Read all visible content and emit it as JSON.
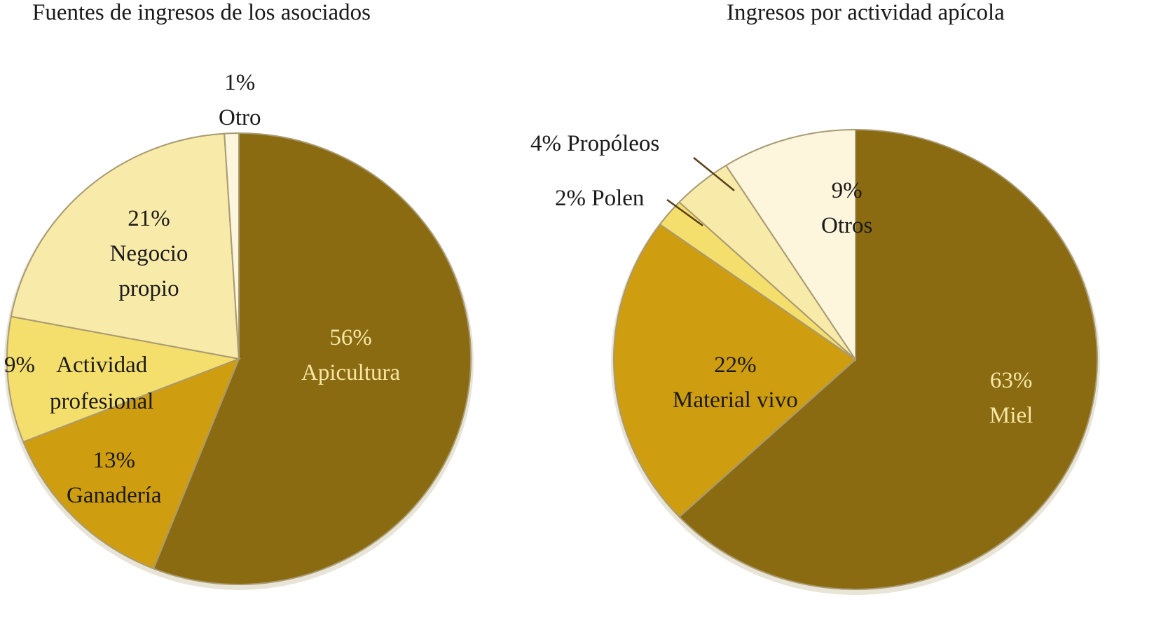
{
  "chart_data": [
    {
      "type": "pie",
      "title": "Fuentes de ingresos de los asociados",
      "start": "top",
      "direction": "clockwise",
      "slices": [
        {
          "label": "Apicultura",
          "value": 56,
          "pct": "56%",
          "color": "#8a6b12"
        },
        {
          "label": "Ganadería",
          "value": 13,
          "pct": "13%",
          "color": "#cf9d10"
        },
        {
          "label": "Actividad profesional",
          "value": 9,
          "pct": "9%",
          "color": "#f5df6c"
        },
        {
          "label": "Negocio propio",
          "value": 21,
          "pct": "21%",
          "color": "#f8eaa9"
        },
        {
          "label": "Otro",
          "value": 1,
          "pct": "1%",
          "color": "#fdf6dd"
        }
      ]
    },
    {
      "type": "pie",
      "title": "Ingresos por actividad apícola",
      "start": "top",
      "direction": "clockwise",
      "slices": [
        {
          "label": "Miel",
          "value": 63,
          "pct": "63%",
          "color": "#8a6b12"
        },
        {
          "label": "Material vivo",
          "value": 22,
          "pct": "22%",
          "color": "#cf9d10"
        },
        {
          "label": "Polen",
          "value": 2,
          "pct": "2%",
          "color": "#f5df6c"
        },
        {
          "label": "Propóleos",
          "value": 4,
          "pct": "4%",
          "color": "#f8eaa9"
        },
        {
          "label": "Otros",
          "value": 9,
          "pct": "9%",
          "color": "#fdf6dd"
        }
      ]
    }
  ]
}
